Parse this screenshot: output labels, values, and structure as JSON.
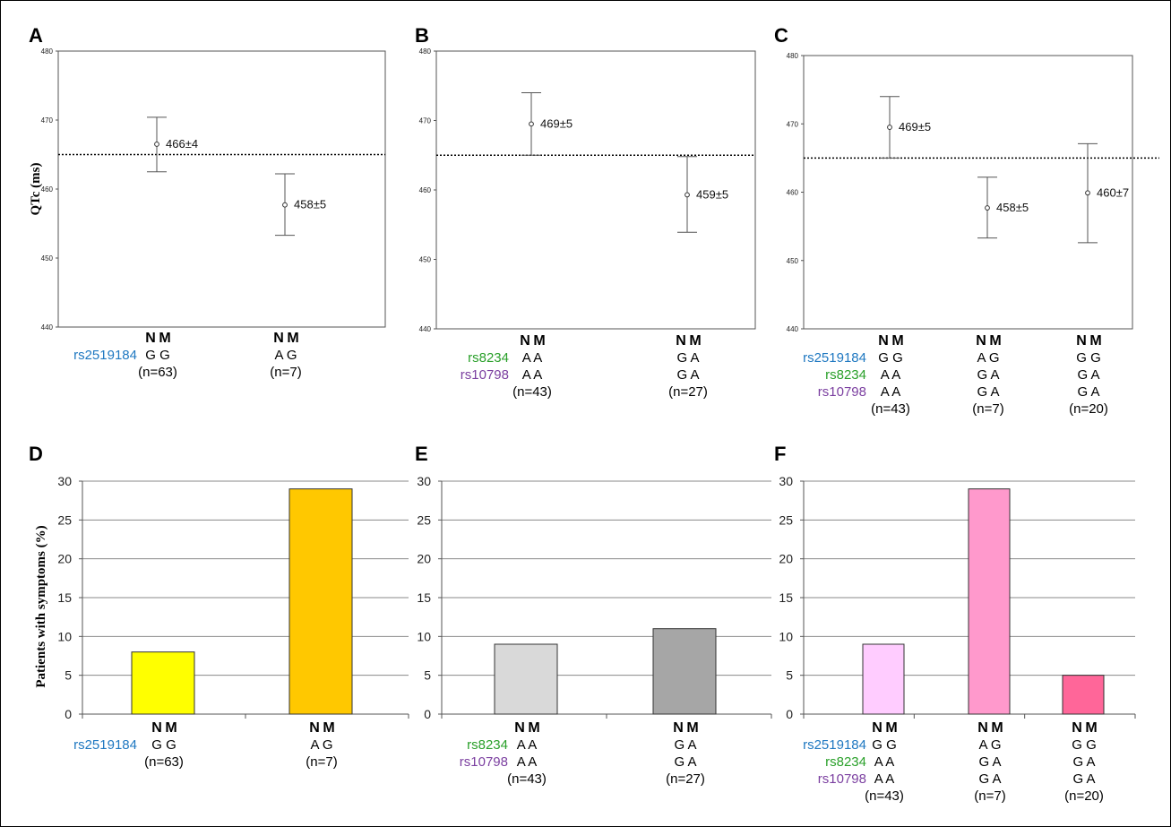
{
  "colors": {
    "rs2519184": "#1f78c1",
    "rs8234": "#2aa02a",
    "rs10798": "#7b3fa0"
  },
  "group_header": {
    "n": "N",
    "m": "M"
  },
  "chart_data": [
    {
      "panel": "A",
      "type": "errorbar",
      "ylabel": "QTc (ms)",
      "ylim": [
        440,
        480
      ],
      "yticks": [
        440,
        450,
        460,
        470,
        480
      ],
      "reference_line": 465,
      "snps": [
        "rs2519184"
      ],
      "groups": [
        {
          "genotypes": [
            "G G"
          ],
          "n": "(n=63)",
          "mean": 466.5,
          "low": 462.5,
          "high": 470.4,
          "label": "466±4"
        },
        {
          "genotypes": [
            "A G"
          ],
          "n": "(n=7)",
          "mean": 457.7,
          "low": 453.3,
          "high": 462.2,
          "label": "458±5"
        }
      ]
    },
    {
      "panel": "B",
      "type": "errorbar",
      "ylabel": "",
      "ylim": [
        440,
        480
      ],
      "yticks": [
        440,
        450,
        460,
        470,
        480
      ],
      "reference_line": 465,
      "snps": [
        "rs8234",
        "rs10798"
      ],
      "groups": [
        {
          "genotypes": [
            "A A",
            "A A"
          ],
          "n": "(n=43)",
          "mean": 469.5,
          "low": 465.0,
          "high": 474.0,
          "label": "469±5"
        },
        {
          "genotypes": [
            "G A",
            "G A"
          ],
          "n": "(n=27)",
          "mean": 459.3,
          "low": 453.9,
          "high": 464.8,
          "label": "459±5"
        }
      ]
    },
    {
      "panel": "C",
      "type": "errorbar",
      "ylabel": "",
      "ylim": [
        440,
        480
      ],
      "yticks": [
        440,
        450,
        460,
        470,
        480
      ],
      "reference_line": 465,
      "snps": [
        "rs2519184",
        "rs8234",
        "rs10798"
      ],
      "groups": [
        {
          "genotypes": [
            "G G",
            "A A",
            "A A"
          ],
          "n": "(n=43)",
          "mean": 469.5,
          "low": 465.0,
          "high": 474.0,
          "label": "469±5"
        },
        {
          "genotypes": [
            "A G",
            "G A",
            "G A"
          ],
          "n": "(n=7)",
          "mean": 457.7,
          "low": 453.3,
          "high": 462.2,
          "label": "458±5"
        },
        {
          "genotypes": [
            "G G",
            "G A",
            "G A"
          ],
          "n": "(n=20)",
          "mean": 459.9,
          "low": 452.6,
          "high": 467.1,
          "label": "460±7"
        }
      ]
    },
    {
      "panel": "D",
      "type": "bar",
      "ylabel": "Patients with symptoms (%)",
      "ylim": [
        0,
        30
      ],
      "yticks": [
        0,
        5,
        10,
        15,
        20,
        25,
        30
      ],
      "snps": [
        "rs2519184"
      ],
      "groups": [
        {
          "genotypes": [
            "G G"
          ],
          "n": "(n=63)",
          "value": 8,
          "color": "#ffff00"
        },
        {
          "genotypes": [
            "A G"
          ],
          "n": "(n=7)",
          "value": 29,
          "color": "#ffc800"
        }
      ]
    },
    {
      "panel": "E",
      "type": "bar",
      "ylabel": "",
      "ylim": [
        0,
        30
      ],
      "yticks": [
        0,
        5,
        10,
        15,
        20,
        25,
        30
      ],
      "snps": [
        "rs8234",
        "rs10798"
      ],
      "groups": [
        {
          "genotypes": [
            "A A",
            "A A"
          ],
          "n": "(n=43)",
          "value": 9,
          "color": "#d9d9d9"
        },
        {
          "genotypes": [
            "G A",
            "G A"
          ],
          "n": "(n=27)",
          "value": 11,
          "color": "#a6a6a6"
        }
      ]
    },
    {
      "panel": "F",
      "type": "bar",
      "ylabel": "",
      "ylim": [
        0,
        30
      ],
      "yticks": [
        0,
        5,
        10,
        15,
        20,
        25,
        30
      ],
      "snps": [
        "rs2519184",
        "rs8234",
        "rs10798"
      ],
      "groups": [
        {
          "genotypes": [
            "G G",
            "A A",
            "A A"
          ],
          "n": "(n=43)",
          "value": 9,
          "color": "#ffccff"
        },
        {
          "genotypes": [
            "A G",
            "G A",
            "G A"
          ],
          "n": "(n=7)",
          "value": 29,
          "color": "#ff99cc"
        },
        {
          "genotypes": [
            "G G",
            "G A",
            "G A"
          ],
          "n": "(n=20)",
          "value": 5,
          "color": "#ff6699"
        }
      ]
    }
  ]
}
